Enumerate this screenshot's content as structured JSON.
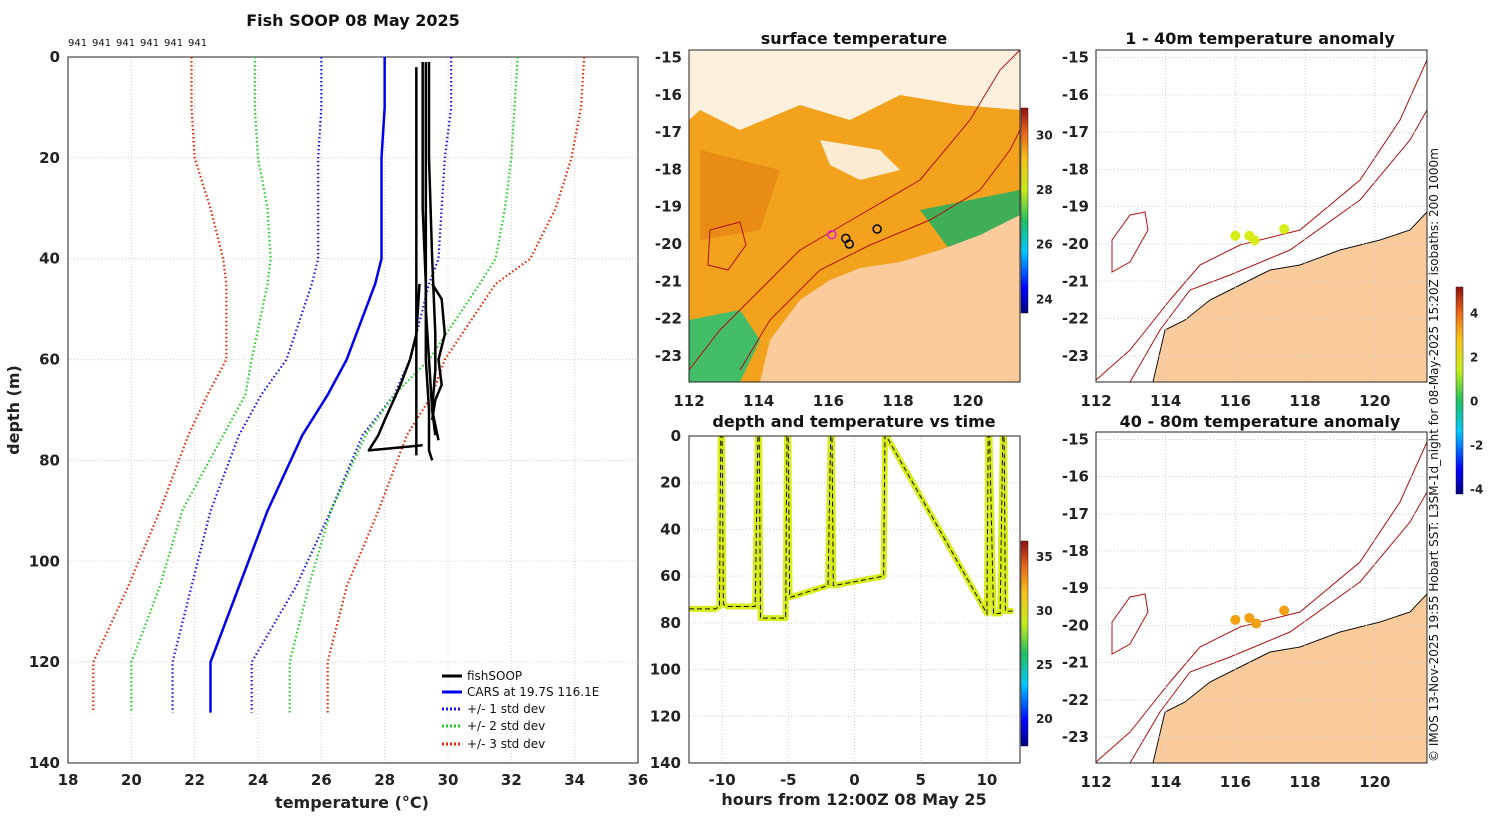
{
  "figure": {
    "credit": "© IMOS 13-Nov-2025 19:55 Hobart SST: L3SM-1d_night for 08-May-2025 15:20Z isobaths: 200  1000m"
  },
  "colors": {
    "fishsoop": "#000000",
    "cars": "#0000ee",
    "std1": "#1515ee",
    "std2": "#22cc22",
    "std3": "#ee2200",
    "land": "#fccb9b",
    "isobath": "#b01010",
    "sst_warm": "#f2a21c",
    "sst_hot": "#e07a10",
    "sst_cool": "#20b060",
    "anom_a": "#d8ec1a",
    "anom_b": "#f0a010"
  },
  "chart_data": [
    {
      "id": "profile",
      "type": "line",
      "title": "Fish SOOP 08 May 2025",
      "xlabel": "temperature (°C)",
      "ylabel": "depth (m)",
      "xlim": [
        18,
        36
      ],
      "ylim": [
        0,
        140
      ],
      "xticks": [
        "18",
        "20",
        "22",
        "24",
        "26",
        "28",
        "30",
        "32",
        "34",
        "36"
      ],
      "yticks": [
        "0",
        "20",
        "40",
        "60",
        "80",
        "100",
        "120",
        "140"
      ],
      "top_ids": [
        "941",
        "941",
        "941",
        "941",
        "941",
        "941"
      ],
      "legend": [
        "fishSOOP",
        "CARS at 19.7S 116.1E",
        "+/- 1 std dev",
        "+/- 2 std dev",
        "+/- 3 std dev"
      ],
      "legend_position": "bottom-right",
      "series": [
        {
          "name": "CARS at 19.7S 116.1E",
          "style": "solid",
          "x": [
            28.0,
            28.0,
            27.9,
            27.9,
            27.9,
            27.7,
            26.8,
            26.2,
            25.4,
            24.3,
            23.4,
            22.5,
            22.5
          ],
          "y": [
            0,
            10,
            20,
            30,
            40,
            45,
            60,
            67,
            75,
            90,
            105,
            120,
            130
          ]
        },
        {
          "name": "+1 std",
          "style": "dot",
          "x": [
            30.1,
            30.1,
            29.9,
            29.8,
            29.7,
            29.4,
            28.8,
            28.3,
            27.3,
            26.3,
            25.2,
            23.8,
            23.8
          ],
          "y": [
            0,
            10,
            20,
            30,
            40,
            45,
            60,
            67,
            75,
            90,
            105,
            120,
            130
          ]
        },
        {
          "name": "-1 std",
          "style": "dot",
          "x": [
            26.0,
            26.0,
            25.9,
            25.9,
            25.9,
            25.7,
            24.9,
            24.1,
            23.4,
            22.5,
            21.9,
            21.3,
            21.3
          ],
          "y": [
            0,
            10,
            20,
            30,
            40,
            45,
            60,
            67,
            75,
            90,
            105,
            120,
            130
          ]
        },
        {
          "name": "+2 std",
          "style": "dot",
          "x": [
            32.2,
            32.1,
            32.0,
            31.8,
            31.5,
            31.0,
            29.4,
            28.3,
            27.4,
            26.3,
            25.6,
            25.0,
            25.0
          ],
          "y": [
            0,
            10,
            20,
            30,
            40,
            45,
            60,
            67,
            75,
            90,
            105,
            120,
            130
          ]
        },
        {
          "name": "-2 std",
          "style": "dot",
          "x": [
            23.9,
            23.9,
            24.0,
            24.3,
            24.4,
            24.3,
            23.8,
            23.6,
            22.9,
            21.6,
            20.9,
            20.0,
            20.0
          ],
          "y": [
            0,
            10,
            20,
            30,
            40,
            45,
            60,
            67,
            75,
            90,
            105,
            120,
            130
          ]
        },
        {
          "name": "+3 std",
          "style": "dot",
          "x": [
            34.3,
            34.2,
            33.9,
            33.4,
            32.6,
            31.5,
            29.9,
            29.5,
            28.7,
            27.8,
            26.8,
            26.2,
            26.2
          ],
          "y": [
            0,
            10,
            20,
            30,
            40,
            45,
            60,
            67,
            75,
            90,
            105,
            120,
            130
          ]
        },
        {
          "name": "-3 std",
          "style": "dot",
          "x": [
            21.9,
            21.9,
            22.0,
            22.5,
            22.9,
            23.0,
            23.0,
            22.4,
            21.8,
            20.9,
            19.9,
            18.8,
            18.8
          ],
          "y": [
            0,
            10,
            20,
            30,
            40,
            45,
            60,
            67,
            75,
            90,
            105,
            120,
            130
          ]
        }
      ],
      "casts": [
        {
          "x": [
            29.0,
            29.0,
            29.0,
            29.0,
            29.0,
            29.0,
            29.0,
            29.0
          ],
          "y": [
            2,
            15,
            30,
            45,
            60,
            70,
            78,
            79
          ]
        },
        {
          "x": [
            29.2,
            29.2,
            29.2,
            29.3,
            29.3,
            29.4,
            29.4,
            29.5
          ],
          "y": [
            1,
            15,
            30,
            45,
            60,
            70,
            78,
            80
          ]
        },
        {
          "x": [
            29.3,
            29.3,
            29.3,
            29.3,
            29.4,
            29.5,
            29.6
          ],
          "y": [
            1,
            20,
            40,
            50,
            60,
            70,
            75
          ]
        },
        {
          "x": [
            29.4,
            29.4,
            29.5,
            29.6,
            29.6,
            29.5,
            29.7
          ],
          "y": [
            1,
            20,
            40,
            55,
            62,
            70,
            76
          ]
        },
        {
          "x": [
            29.1,
            29.0,
            28.8,
            28.5,
            28.0,
            27.8,
            27.5,
            29.2
          ],
          "y": [
            45,
            55,
            60,
            65,
            72,
            75,
            78,
            77
          ]
        },
        {
          "x": [
            29.5,
            29.8,
            29.9,
            29.7,
            29.8,
            29.6,
            29.5
          ],
          "y": [
            45,
            48,
            55,
            60,
            65,
            68,
            72
          ]
        }
      ]
    },
    {
      "id": "sst_map",
      "type": "heatmap",
      "title": "surface temperature",
      "xlim": [
        112,
        121.5
      ],
      "ylim": [
        -23.7,
        -14.8
      ],
      "xticks": [
        "112",
        "114",
        "116",
        "118",
        "120"
      ],
      "yticks": [
        "-15",
        "-16",
        "-17",
        "-18",
        "-19",
        "-20",
        "-21",
        "-22",
        "-23"
      ],
      "colorbar_range": [
        23.5,
        31
      ],
      "colorbar_ticks": [
        "24",
        "26",
        "28",
        "30"
      ],
      "stations": [
        [
          116.1,
          -19.75
        ],
        [
          116.5,
          -19.85
        ],
        [
          116.6,
          -20.0
        ],
        [
          117.4,
          -19.6
        ]
      ]
    },
    {
      "id": "depth_time",
      "type": "line",
      "title": "depth and temperature vs time",
      "xlabel": "hours from 12:00Z 08 May 25",
      "xlim": [
        -12.5,
        12.5
      ],
      "ylim": [
        0,
        140
      ],
      "xticks": [
        "-10",
        "-5",
        "0",
        "5",
        "10"
      ],
      "yticks": [
        "0",
        "20",
        "40",
        "60",
        "80",
        "100",
        "120",
        "140"
      ],
      "colorbar_range": [
        17.5,
        36.5
      ],
      "colorbar_ticks": [
        "20",
        "25",
        "30",
        "35"
      ],
      "x": [
        -12.5,
        -10.5,
        -10.2,
        -10.1,
        -10.0,
        -9.9,
        -9.6,
        -7.5,
        -7.3,
        -7.2,
        -7.1,
        -5.2,
        -5.1,
        -5.0,
        -4.9,
        -4.8,
        -2.0,
        -1.8,
        -1.7,
        -1.6,
        -1.5,
        2.2,
        2.3,
        2.4,
        10.0,
        10.1,
        10.2,
        10.5,
        11.0,
        11.2,
        11.3,
        11.4,
        11.5,
        12.0
      ],
      "y": [
        74,
        74,
        73,
        0,
        0,
        72,
        73,
        73,
        0,
        0,
        78,
        78,
        0,
        0,
        69,
        69,
        64,
        0,
        0,
        64,
        64,
        60,
        0,
        0,
        76,
        0,
        0,
        76,
        76,
        0,
        0,
        75,
        75,
        75
      ]
    },
    {
      "id": "anom_1_40",
      "type": "scatter",
      "title": "1 - 40m temperature anomaly",
      "xlim": [
        112,
        121.5
      ],
      "ylim": [
        -23.7,
        -14.8
      ],
      "xticks": [
        "112",
        "114",
        "116",
        "118",
        "120"
      ],
      "yticks": [
        "-15",
        "-16",
        "-17",
        "-18",
        "-19",
        "-20",
        "-21",
        "-22",
        "-23"
      ],
      "points": [
        [
          116.0,
          -19.78
        ],
        [
          116.4,
          -19.78
        ],
        [
          116.55,
          -19.9
        ],
        [
          117.4,
          -19.6
        ]
      ]
    },
    {
      "id": "anom_40_80",
      "type": "scatter",
      "title": "40 - 80m temperature anomaly",
      "xlim": [
        112,
        121.5
      ],
      "ylim": [
        -23.7,
        -14.8
      ],
      "xticks": [
        "112",
        "114",
        "116",
        "118",
        "120"
      ],
      "yticks": [
        "-15",
        "-16",
        "-17",
        "-18",
        "-19",
        "-20",
        "-21",
        "-22",
        "-23"
      ],
      "points": [
        [
          116.0,
          -19.85
        ],
        [
          116.4,
          -19.8
        ],
        [
          116.6,
          -19.95
        ],
        [
          117.4,
          -19.6
        ]
      ]
    },
    {
      "id": "anom_colorbar",
      "type": "heatmap",
      "colorbar_range": [
        -4.2,
        5.2
      ],
      "colorbar_ticks": [
        "4",
        "2",
        "0",
        "-2",
        "-4"
      ]
    }
  ]
}
